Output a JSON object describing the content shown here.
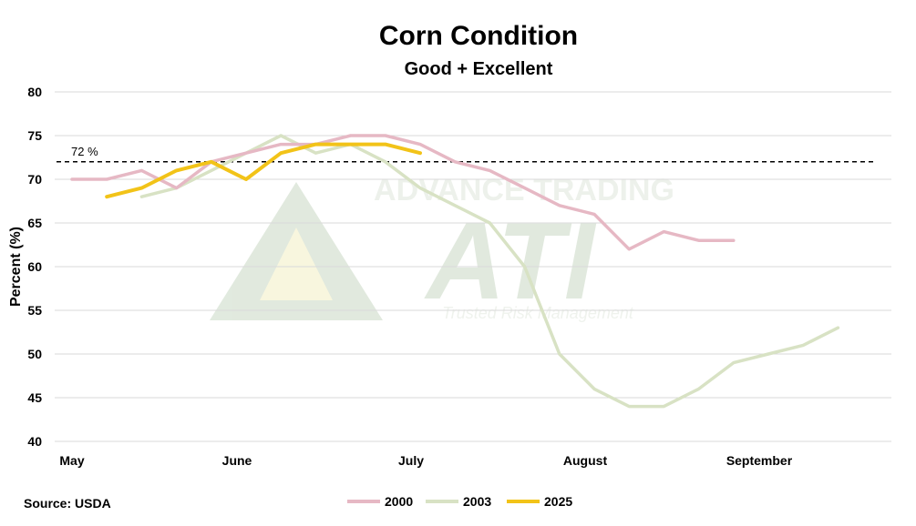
{
  "chart_data": {
    "type": "line",
    "title": "Corn Condition",
    "subtitle": "Good + Excellent",
    "ylabel": "Percent (%)",
    "xlabel": "",
    "ylim": [
      40,
      80
    ],
    "yticks": [
      40,
      45,
      50,
      55,
      60,
      65,
      70,
      75,
      80
    ],
    "x_unit": "week index (0 = May 1, 4 weeks per month tick)",
    "xlim": [
      0,
      20
    ],
    "xticks": [
      {
        "label": "May",
        "x": 0
      },
      {
        "label": "June",
        "x": 4
      },
      {
        "label": "July",
        "x": 8
      },
      {
        "label": "August",
        "x": 12
      },
      {
        "label": "September",
        "x": 16
      }
    ],
    "reference_line": {
      "value": 72,
      "label": "72 %",
      "style": "dashed"
    },
    "grid": true,
    "legend_position": "bottom-center",
    "series": [
      {
        "name": "2000",
        "color": "#e6b8c4",
        "x": [
          0,
          0.8,
          1.6,
          2.4,
          3.2,
          4,
          4.8,
          5.6,
          6.4,
          7.2,
          8,
          8.8,
          9.6,
          10.4,
          11.2,
          12,
          12.8,
          13.6,
          14.4,
          15.2
        ],
        "values": [
          70,
          70,
          71,
          69,
          72,
          73,
          74,
          74,
          75,
          75,
          74,
          72,
          71,
          69,
          67,
          66,
          62,
          64,
          63,
          63
        ]
      },
      {
        "name": "2003",
        "color": "#d8e2c4",
        "x": [
          1.6,
          2.4,
          3.2,
          4,
          4.8,
          5.6,
          6.4,
          7.2,
          8,
          8.8,
          9.6,
          10.4,
          11.2,
          12,
          12.8,
          13.6,
          14.4,
          15.2,
          16,
          16.8,
          17.6
        ],
        "values": [
          68,
          69,
          71,
          73,
          75,
          73,
          74,
          72,
          69,
          67,
          65,
          60,
          50,
          46,
          44,
          44,
          46,
          49,
          50,
          51,
          53
        ]
      },
      {
        "name": "2025",
        "color": "#f2c318",
        "x": [
          0.8,
          1.6,
          2.4,
          3.2,
          4,
          4.8,
          5.6,
          6.4,
          7.2,
          8
        ],
        "values": [
          68,
          69,
          71,
          72,
          70,
          73,
          74,
          74,
          74,
          73
        ]
      }
    ]
  },
  "source": "Source: USDA",
  "watermark": {
    "company": "ADVANCE TRADING",
    "abbr": "ATI",
    "tagline": "Trusted Risk Management"
  },
  "colors": {
    "grid": "#d9d9d9",
    "reference": "#000000",
    "watermark_green": "#c9d8c4",
    "watermark_yellow": "#f3efc4"
  }
}
